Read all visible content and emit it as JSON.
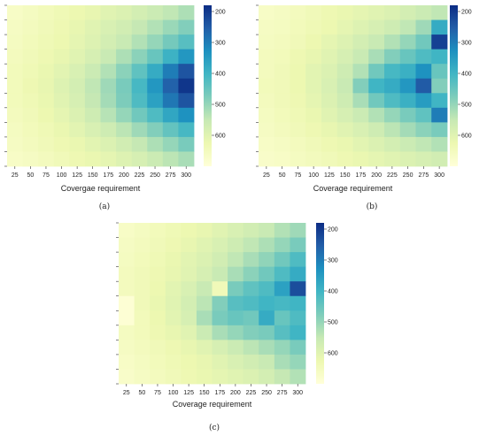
{
  "colorscale": [
    "#ffffd9",
    "#edf8b1",
    "#c7e9b4",
    "#7fcdbb",
    "#41b6c4",
    "#1d91c0",
    "#225ea8",
    "#0c2c84"
  ],
  "chart_data": [
    {
      "type": "heatmap",
      "caption": "(a)",
      "xlabel": "Covergae requirement",
      "ylabel": "",
      "x_ticks": [
        "25",
        "50",
        "75",
        "100",
        "125",
        "150",
        "175",
        "200",
        "225",
        "250",
        "275",
        "300"
      ],
      "colorbar": {
        "min": 180,
        "max": 700,
        "reversed": true,
        "ticks": [
          "200",
          "300",
          "400",
          "500",
          "600"
        ]
      },
      "values": [
        [
          665,
          655,
          645,
          635,
          625,
          615,
          600,
          590,
          575,
          560,
          545,
          525
        ],
        [
          660,
          650,
          640,
          630,
          615,
          600,
          585,
          570,
          550,
          530,
          505,
          480
        ],
        [
          655,
          645,
          635,
          625,
          610,
          595,
          575,
          555,
          530,
          500,
          465,
          430
        ],
        [
          650,
          640,
          630,
          615,
          600,
          580,
          555,
          525,
          490,
          450,
          395,
          340
        ],
        [
          645,
          635,
          620,
          605,
          585,
          560,
          530,
          490,
          440,
          380,
          300,
          240
        ],
        [
          645,
          630,
          615,
          595,
          575,
          545,
          510,
          470,
          410,
          340,
          260,
          195
        ],
        [
          645,
          635,
          620,
          600,
          580,
          550,
          515,
          475,
          420,
          360,
          290,
          240
        ],
        [
          650,
          640,
          625,
          610,
          590,
          565,
          535,
          500,
          460,
          420,
          370,
          330
        ],
        [
          655,
          645,
          635,
          620,
          605,
          585,
          565,
          540,
          510,
          480,
          445,
          410
        ],
        [
          660,
          650,
          640,
          630,
          620,
          605,
          590,
          570,
          550,
          525,
          500,
          470
        ],
        [
          665,
          660,
          650,
          640,
          630,
          620,
          610,
          595,
          580,
          560,
          540,
          520
        ]
      ]
    },
    {
      "type": "heatmap",
      "caption": "(b)",
      "xlabel": "Coverage requirement",
      "ylabel": "",
      "x_ticks": [
        "25",
        "50",
        "75",
        "100",
        "125",
        "150",
        "175",
        "200",
        "225",
        "250",
        "275",
        "300"
      ],
      "colorbar": {
        "min": 180,
        "max": 700,
        "reversed": true,
        "ticks": [
          "200",
          "300",
          "400",
          "500",
          "600"
        ]
      },
      "values": [
        [
          665,
          660,
          650,
          640,
          630,
          620,
          610,
          600,
          590,
          575,
          560,
          545
        ],
        [
          660,
          655,
          645,
          635,
          625,
          610,
          595,
          580,
          565,
          545,
          510,
          380
        ],
        [
          655,
          650,
          640,
          625,
          610,
          595,
          575,
          555,
          530,
          500,
          460,
          210
        ],
        [
          650,
          645,
          630,
          615,
          600,
          580,
          555,
          520,
          480,
          450,
          420,
          400
        ],
        [
          650,
          640,
          625,
          605,
          590,
          565,
          530,
          460,
          410,
          390,
          330,
          450
        ],
        [
          645,
          640,
          625,
          605,
          585,
          555,
          480,
          400,
          380,
          340,
          250,
          480
        ],
        [
          650,
          640,
          630,
          610,
          590,
          565,
          520,
          460,
          420,
          390,
          350,
          400
        ],
        [
          655,
          645,
          635,
          620,
          600,
          580,
          560,
          530,
          500,
          470,
          440,
          300
        ],
        [
          660,
          650,
          640,
          630,
          615,
          600,
          585,
          565,
          540,
          515,
          490,
          470
        ],
        [
          665,
          660,
          650,
          640,
          630,
          620,
          605,
          590,
          575,
          560,
          545,
          530
        ],
        [
          670,
          665,
          655,
          648,
          640,
          630,
          620,
          610,
          600,
          590,
          580,
          570
        ]
      ]
    },
    {
      "type": "heatmap",
      "caption": "(c)",
      "xlabel": "Coverage requirement",
      "ylabel": "",
      "x_ticks": [
        "25",
        "50",
        "75",
        "100",
        "125",
        "150",
        "175",
        "200",
        "225",
        "250",
        "275",
        "300"
      ],
      "colorbar": {
        "min": 180,
        "max": 700,
        "reversed": true,
        "ticks": [
          "200",
          "300",
          "400",
          "500",
          "600"
        ]
      },
      "values": [
        [
          665,
          655,
          645,
          635,
          625,
          615,
          600,
          585,
          570,
          555,
          530,
          510
        ],
        [
          660,
          650,
          640,
          630,
          615,
          600,
          585,
          565,
          545,
          525,
          500,
          470
        ],
        [
          655,
          645,
          635,
          620,
          605,
          590,
          570,
          545,
          520,
          495,
          460,
          420
        ],
        [
          650,
          640,
          630,
          615,
          600,
          580,
          555,
          520,
          490,
          460,
          420,
          380
        ],
        [
          650,
          640,
          625,
          605,
          585,
          555,
          640,
          470,
          440,
          420,
          360,
          230
        ],
        [
          690,
          640,
          620,
          600,
          575,
          540,
          480,
          430,
          420,
          400,
          410,
          400
        ],
        [
          690,
          645,
          625,
          605,
          580,
          520,
          470,
          450,
          460,
          380,
          450,
          420
        ],
        [
          655,
          645,
          630,
          615,
          600,
          560,
          520,
          500,
          480,
          470,
          430,
          400
        ],
        [
          660,
          650,
          640,
          630,
          615,
          600,
          580,
          560,
          540,
          520,
          500,
          470
        ],
        [
          665,
          655,
          645,
          635,
          625,
          615,
          600,
          585,
          570,
          555,
          520,
          500
        ],
        [
          670,
          660,
          650,
          640,
          630,
          620,
          610,
          600,
          590,
          575,
          550,
          530
        ]
      ]
    }
  ]
}
